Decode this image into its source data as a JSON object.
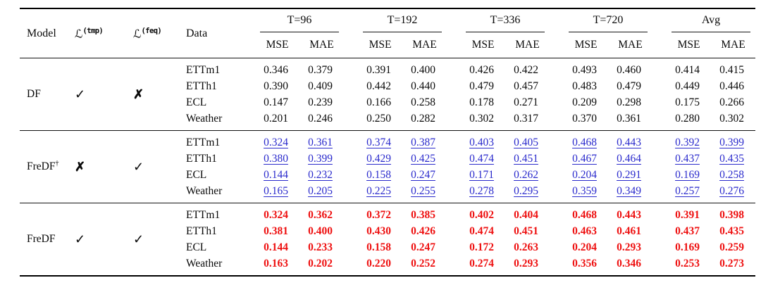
{
  "table": {
    "colors": {
      "best": "#ee1111",
      "second_best": "#2a2acc",
      "text": "#0a0a0a"
    },
    "header": {
      "model": "Model",
      "loss_tmp_symbol": "ℒ",
      "loss_tmp_sup": "(tmp)",
      "loss_feq_symbol": "ℒ",
      "loss_feq_sup": "(feq)",
      "data": "Data",
      "groups": [
        "T=96",
        "T=192",
        "T=336",
        "T=720",
        "Avg"
      ],
      "metrics": [
        "MSE",
        "MAE"
      ]
    },
    "blocks": [
      {
        "model": "DF",
        "model_sup": "",
        "tmp_mark": "✓",
        "feq_mark": "✗",
        "rows": [
          {
            "dataset": "ETTm1",
            "values": [
              "0.346",
              "0.379",
              "0.391",
              "0.400",
              "0.426",
              "0.422",
              "0.493",
              "0.460",
              "0.414",
              "0.415"
            ]
          },
          {
            "dataset": "ETTh1",
            "values": [
              "0.390",
              "0.409",
              "0.442",
              "0.440",
              "0.479",
              "0.457",
              "0.483",
              "0.479",
              "0.449",
              "0.446"
            ]
          },
          {
            "dataset": "ECL",
            "values": [
              "0.147",
              "0.239",
              "0.166",
              "0.258",
              "0.178",
              "0.271",
              "0.209",
              "0.298",
              "0.175",
              "0.266"
            ]
          },
          {
            "dataset": "Weather",
            "values": [
              "0.201",
              "0.246",
              "0.250",
              "0.282",
              "0.302",
              "0.317",
              "0.370",
              "0.361",
              "0.280",
              "0.302"
            ]
          }
        ]
      },
      {
        "model": "FreDF",
        "model_sup": "†",
        "tmp_mark": "✗",
        "feq_mark": "✓",
        "rows": [
          {
            "dataset": "ETTm1",
            "values": [
              "0.324",
              "0.361",
              "0.374",
              "0.387",
              "0.403",
              "0.405",
              "0.468",
              "0.443",
              "0.392",
              "0.399"
            ]
          },
          {
            "dataset": "ETTh1",
            "values": [
              "0.380",
              "0.399",
              "0.429",
              "0.425",
              "0.474",
              "0.451",
              "0.467",
              "0.464",
              "0.437",
              "0.435"
            ]
          },
          {
            "dataset": "ECL",
            "values": [
              "0.144",
              "0.232",
              "0.158",
              "0.247",
              "0.171",
              "0.262",
              "0.204",
              "0.291",
              "0.169",
              "0.258"
            ]
          },
          {
            "dataset": "Weather",
            "values": [
              "0.165",
              "0.205",
              "0.225",
              "0.255",
              "0.278",
              "0.295",
              "0.359",
              "0.349",
              "0.257",
              "0.276"
            ]
          }
        ]
      },
      {
        "model": "FreDF",
        "model_sup": "",
        "tmp_mark": "✓",
        "feq_mark": "✓",
        "rows": [
          {
            "dataset": "ETTm1",
            "values": [
              "0.324",
              "0.362",
              "0.372",
              "0.385",
              "0.402",
              "0.404",
              "0.468",
              "0.443",
              "0.391",
              "0.398"
            ]
          },
          {
            "dataset": "ETTh1",
            "values": [
              "0.381",
              "0.400",
              "0.430",
              "0.426",
              "0.474",
              "0.451",
              "0.463",
              "0.461",
              "0.437",
              "0.435"
            ]
          },
          {
            "dataset": "ECL",
            "values": [
              "0.144",
              "0.233",
              "0.158",
              "0.247",
              "0.172",
              "0.263",
              "0.204",
              "0.293",
              "0.169",
              "0.259"
            ]
          },
          {
            "dataset": "Weather",
            "values": [
              "0.163",
              "0.202",
              "0.220",
              "0.252",
              "0.274",
              "0.293",
              "0.356",
              "0.346",
              "0.253",
              "0.273"
            ]
          }
        ]
      }
    ]
  }
}
